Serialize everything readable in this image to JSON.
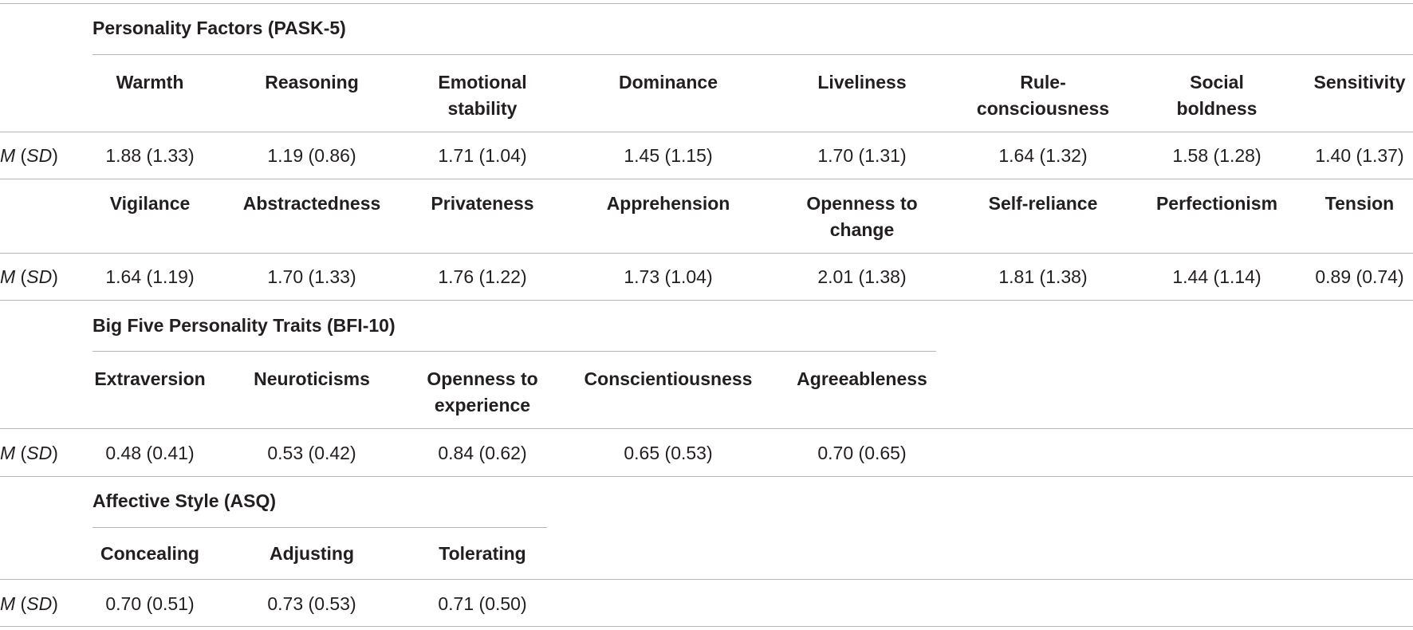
{
  "msd": {
    "m": "M",
    "sd": "SD"
  },
  "pask": {
    "title": "Personality Factors (PASK-5)",
    "row1_headers": [
      [
        "Warmth"
      ],
      [
        "Reasoning"
      ],
      [
        "Emotional",
        "stability"
      ],
      [
        "Dominance"
      ],
      [
        "Liveliness"
      ],
      [
        "Rule-",
        "consciousness"
      ],
      [
        "Social",
        "boldness"
      ],
      [
        "Sensitivity"
      ]
    ],
    "row1_values": [
      "1.88 (1.33)",
      "1.19 (0.86)",
      "1.71 (1.04)",
      "1.45 (1.15)",
      "1.70 (1.31)",
      "1.64 (1.32)",
      "1.58 (1.28)",
      "1.40 (1.37)"
    ],
    "row2_headers": [
      [
        "Vigilance"
      ],
      [
        "Abstractedness"
      ],
      [
        "Privateness"
      ],
      [
        "Apprehension"
      ],
      [
        "Openness to",
        "change"
      ],
      [
        "Self-reliance"
      ],
      [
        "Perfectionism"
      ],
      [
        "Tension"
      ]
    ],
    "row2_values": [
      "1.64 (1.19)",
      "1.70 (1.33)",
      "1.76 (1.22)",
      "1.73 (1.04)",
      "2.01 (1.38)",
      "1.81 (1.38)",
      "1.44 (1.14)",
      "0.89 (0.74)"
    ]
  },
  "bfi": {
    "title": "Big Five Personality Traits (BFI-10)",
    "headers": [
      [
        "Extraversion"
      ],
      [
        "Neuroticisms"
      ],
      [
        "Openness to",
        "experience"
      ],
      [
        "Conscientiousness"
      ],
      [
        "Agreeableness"
      ]
    ],
    "values": [
      "0.48 (0.41)",
      "0.53 (0.42)",
      "0.84 (0.62)",
      "0.65 (0.53)",
      "0.70 (0.65)"
    ]
  },
  "asq": {
    "title": "Affective Style (ASQ)",
    "headers": [
      [
        "Concealing"
      ],
      [
        "Adjusting"
      ],
      [
        "Tolerating"
      ]
    ],
    "values": [
      "0.70 (0.51)",
      "0.73 (0.53)",
      "0.71 (0.50)"
    ]
  }
}
